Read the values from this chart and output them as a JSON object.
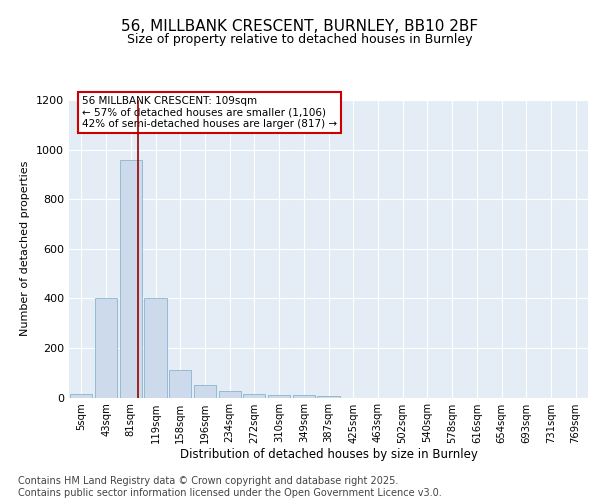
{
  "title1": "56, MILLBANK CRESCENT, BURNLEY, BB10 2BF",
  "title2": "Size of property relative to detached houses in Burnley",
  "xlabel": "Distribution of detached houses by size in Burnley",
  "ylabel": "Number of detached properties",
  "bar_color": "#ccdaeb",
  "bar_edge_color": "#7aaac8",
  "background_color": "#e4ecf5",
  "grid_color": "#ffffff",
  "bin_labels": [
    "5sqm",
    "43sqm",
    "81sqm",
    "119sqm",
    "158sqm",
    "196sqm",
    "234sqm",
    "272sqm",
    "310sqm",
    "349sqm",
    "387sqm",
    "425sqm",
    "463sqm",
    "502sqm",
    "540sqm",
    "578sqm",
    "616sqm",
    "654sqm",
    "693sqm",
    "731sqm",
    "769sqm"
  ],
  "values": [
    15,
    400,
    960,
    400,
    110,
    50,
    25,
    15,
    10,
    10,
    5,
    0,
    0,
    0,
    0,
    0,
    0,
    0,
    0,
    0,
    0
  ],
  "property_line_x": 2,
  "property_line_color": "#990000",
  "annotation_text": "56 MILLBANK CRESCENT: 109sqm\n← 57% of detached houses are smaller (1,106)\n42% of semi-detached houses are larger (817) →",
  "annotation_box_color": "#cc0000",
  "ylim_max": 1200,
  "yticks": [
    0,
    200,
    400,
    600,
    800,
    1000,
    1200
  ],
  "footnote": "Contains HM Land Registry data © Crown copyright and database right 2025.\nContains public sector information licensed under the Open Government Licence v3.0.",
  "title_fontsize": 11,
  "subtitle_fontsize": 9,
  "footnote_fontsize": 7
}
